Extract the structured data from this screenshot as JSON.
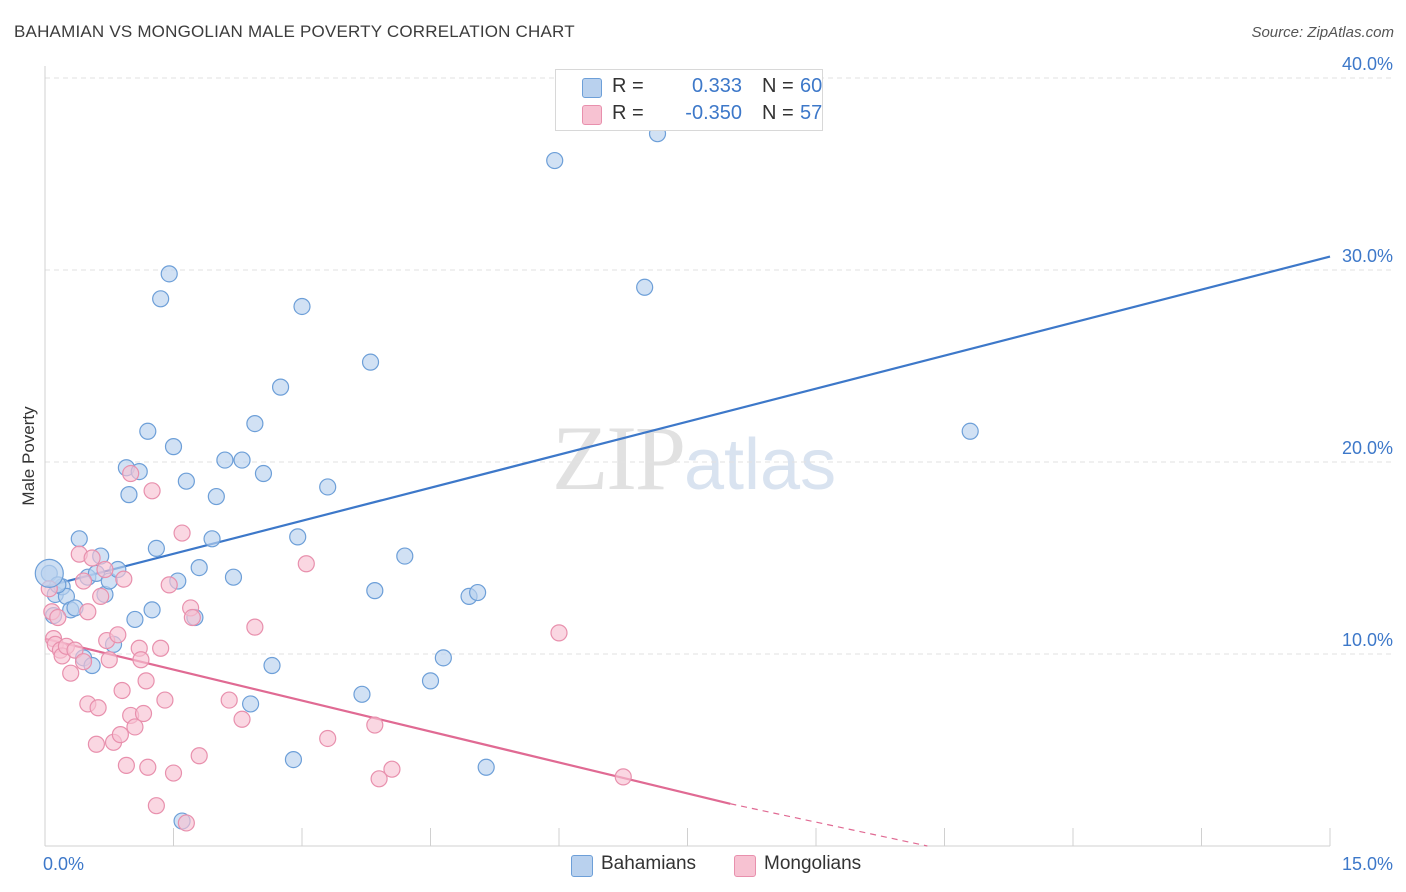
{
  "header": {
    "title": "BAHAMIAN VS MONGOLIAN MALE POVERTY CORRELATION CHART",
    "source": "Source: ZipAtlas.com"
  },
  "watermark": {
    "zip": "ZIP",
    "atlas": "atlas"
  },
  "legend": {
    "rows": [
      {
        "r_label": "R =",
        "r_value": "0.333",
        "n_label": "N =",
        "n_value": "60"
      },
      {
        "r_label": "R =",
        "r_value": "-0.350",
        "n_label": "N =",
        "n_value": "57"
      }
    ]
  },
  "bottom_legend": {
    "series1": "Bahamians",
    "series2": "Mongolians"
  },
  "colors": {
    "blue_fill": "#b9d1ee",
    "blue_stroke": "#6d9fd8",
    "blue_line": "#3d78c9",
    "pink_fill": "#f7c2d2",
    "pink_stroke": "#e890ad",
    "pink_line": "#e06a93",
    "grid": "#e2e2e2",
    "tick_label": "#3d78c9"
  },
  "chart_data": {
    "type": "scatter",
    "title": "BAHAMIAN VS MONGOLIAN MALE POVERTY CORRELATION CHART",
    "xlabel": "",
    "ylabel": "Male Poverty",
    "xlim": [
      0,
      15
    ],
    "ylim": [
      0,
      40
    ],
    "x_tick_labels": [
      "0.0%",
      "15.0%"
    ],
    "y_ticks": [
      10,
      20,
      30,
      40
    ],
    "y_tick_labels": [
      "10.0%",
      "20.0%",
      "30.0%",
      "40.0%"
    ],
    "grid": true,
    "series": [
      {
        "name": "Bahamians",
        "r": 0.333,
        "n": 60,
        "trend": {
          "x": [
            0,
            15
          ],
          "y": [
            13.5,
            30.7
          ]
        },
        "points": [
          [
            0.05,
            14.2
          ],
          [
            0.1,
            12.0
          ],
          [
            0.12,
            13.1
          ],
          [
            0.2,
            13.5
          ],
          [
            0.25,
            13.0
          ],
          [
            0.3,
            12.3
          ],
          [
            0.35,
            12.4
          ],
          [
            0.4,
            16.0
          ],
          [
            0.45,
            9.8
          ],
          [
            0.5,
            14.0
          ],
          [
            0.55,
            9.4
          ],
          [
            0.6,
            14.2
          ],
          [
            0.65,
            15.1
          ],
          [
            0.7,
            13.1
          ],
          [
            0.75,
            13.8
          ],
          [
            0.8,
            10.5
          ],
          [
            0.85,
            14.4
          ],
          [
            0.95,
            19.7
          ],
          [
            0.98,
            18.3
          ],
          [
            1.05,
            11.8
          ],
          [
            1.1,
            19.5
          ],
          [
            1.2,
            21.6
          ],
          [
            1.25,
            12.3
          ],
          [
            1.3,
            15.5
          ],
          [
            1.35,
            28.5
          ],
          [
            1.45,
            29.8
          ],
          [
            1.5,
            20.8
          ],
          [
            1.55,
            13.8
          ],
          [
            1.65,
            19.0
          ],
          [
            1.75,
            11.9
          ],
          [
            1.8,
            14.5
          ],
          [
            1.95,
            16.0
          ],
          [
            2.0,
            18.2
          ],
          [
            2.1,
            20.1
          ],
          [
            2.2,
            14.0
          ],
          [
            2.3,
            20.1
          ],
          [
            2.4,
            7.4
          ],
          [
            2.45,
            22.0
          ],
          [
            2.55,
            19.4
          ],
          [
            2.65,
            9.4
          ],
          [
            2.75,
            23.9
          ],
          [
            2.9,
            4.5
          ],
          [
            2.95,
            16.1
          ],
          [
            3.0,
            28.1
          ],
          [
            3.3,
            18.7
          ],
          [
            3.7,
            7.9
          ],
          [
            3.8,
            25.2
          ],
          [
            3.85,
            13.3
          ],
          [
            4.2,
            15.1
          ],
          [
            4.5,
            8.6
          ],
          [
            4.65,
            9.8
          ],
          [
            4.95,
            13.0
          ],
          [
            5.05,
            13.2
          ],
          [
            5.15,
            4.1
          ],
          [
            5.95,
            35.7
          ],
          [
            7.0,
            29.1
          ],
          [
            7.15,
            37.1
          ],
          [
            10.8,
            21.6
          ],
          [
            1.6,
            1.3
          ],
          [
            0.15,
            13.6
          ]
        ]
      },
      {
        "name": "Mongolians",
        "r": -0.35,
        "n": 57,
        "trend": {
          "x": [
            0,
            8.0
          ],
          "y": [
            10.8,
            2.2
          ]
        },
        "trend_dashed": {
          "x": [
            8.0,
            10.3
          ],
          "y": [
            2.2,
            0.0
          ]
        },
        "points": [
          [
            0.05,
            13.4
          ],
          [
            0.08,
            12.2
          ],
          [
            0.1,
            10.8
          ],
          [
            0.12,
            10.5
          ],
          [
            0.15,
            11.9
          ],
          [
            0.18,
            10.2
          ],
          [
            0.2,
            9.9
          ],
          [
            0.25,
            10.4
          ],
          [
            0.3,
            9.0
          ],
          [
            0.35,
            10.2
          ],
          [
            0.4,
            15.2
          ],
          [
            0.45,
            13.8
          ],
          [
            0.45,
            9.6
          ],
          [
            0.5,
            7.4
          ],
          [
            0.5,
            12.2
          ],
          [
            0.55,
            15.0
          ],
          [
            0.6,
            5.3
          ],
          [
            0.62,
            7.2
          ],
          [
            0.65,
            13.0
          ],
          [
            0.7,
            14.4
          ],
          [
            0.72,
            10.7
          ],
          [
            0.75,
            9.7
          ],
          [
            0.8,
            5.4
          ],
          [
            0.85,
            11.0
          ],
          [
            0.88,
            5.8
          ],
          [
            0.9,
            8.1
          ],
          [
            0.92,
            13.9
          ],
          [
            0.95,
            4.2
          ],
          [
            1.0,
            19.4
          ],
          [
            1.0,
            6.8
          ],
          [
            1.05,
            6.2
          ],
          [
            1.1,
            10.3
          ],
          [
            1.12,
            9.7
          ],
          [
            1.15,
            6.9
          ],
          [
            1.18,
            8.6
          ],
          [
            1.2,
            4.1
          ],
          [
            1.25,
            18.5
          ],
          [
            1.3,
            2.1
          ],
          [
            1.35,
            10.3
          ],
          [
            1.4,
            7.6
          ],
          [
            1.45,
            13.6
          ],
          [
            1.5,
            3.8
          ],
          [
            1.6,
            16.3
          ],
          [
            1.65,
            1.2
          ],
          [
            1.7,
            12.4
          ],
          [
            1.72,
            11.9
          ],
          [
            1.8,
            4.7
          ],
          [
            2.15,
            7.6
          ],
          [
            2.3,
            6.6
          ],
          [
            2.45,
            11.4
          ],
          [
            3.05,
            14.7
          ],
          [
            3.3,
            5.6
          ],
          [
            3.85,
            6.3
          ],
          [
            3.9,
            3.5
          ],
          [
            4.05,
            4.0
          ],
          [
            6.0,
            11.1
          ],
          [
            6.75,
            3.6
          ]
        ]
      }
    ]
  }
}
